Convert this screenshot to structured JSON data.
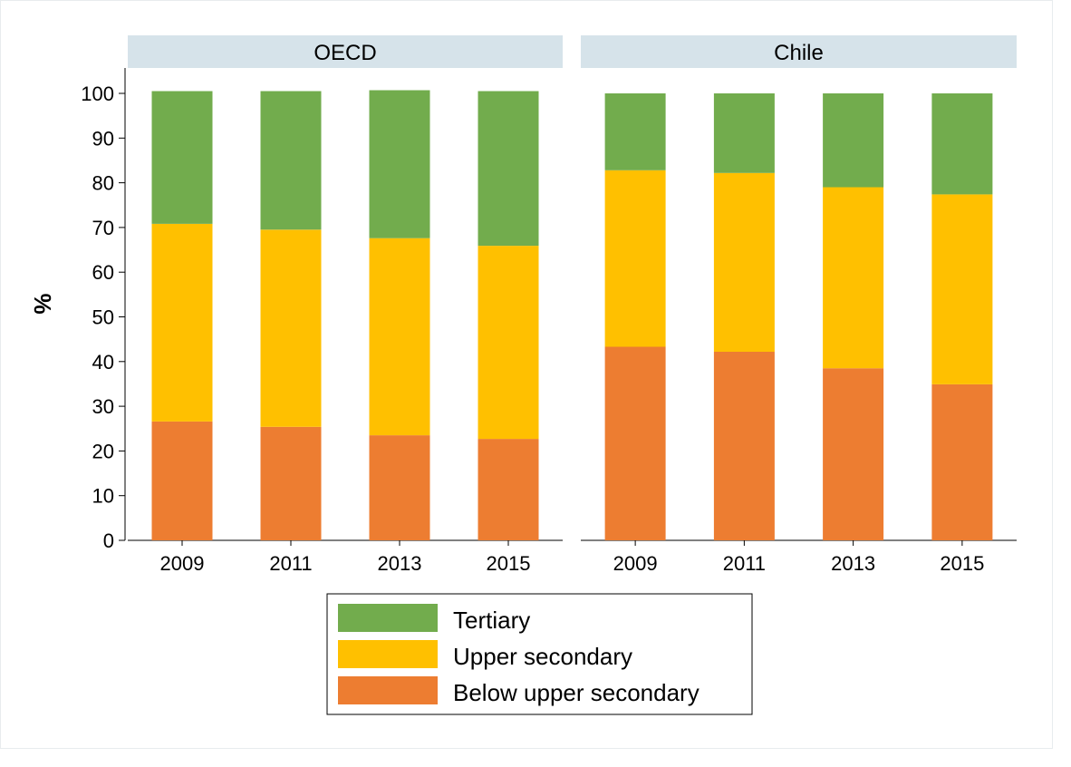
{
  "chart_data": {
    "type": "bar",
    "stacked": true,
    "ylabel": "%",
    "ylim": [
      0,
      100
    ],
    "yticks": [
      0,
      10,
      20,
      30,
      40,
      50,
      60,
      70,
      80,
      90,
      100
    ],
    "grid": false,
    "legend_position": "bottom-center",
    "colors": {
      "tertiary": "#72ac4d",
      "upper_secondary": "#ffc000",
      "below_upper_secondary": "#ed7d31",
      "strip": "#d6e3ea"
    },
    "legend": [
      {
        "key": "tertiary",
        "label": "Tertiary"
      },
      {
        "key": "upper_secondary",
        "label": "Upper secondary"
      },
      {
        "key": "below_upper_secondary",
        "label": "Below upper secondary"
      }
    ],
    "panels": [
      {
        "title": "OECD",
        "categories": [
          "2009",
          "2011",
          "2013",
          "2015"
        ],
        "series": [
          {
            "name": "Below upper secondary",
            "key": "below_upper_secondary",
            "values": [
              26.6,
              25.4,
              23.5,
              22.7
            ]
          },
          {
            "name": "Upper secondary",
            "key": "upper_secondary",
            "values": [
              44.2,
              44.1,
              44.1,
              43.2
            ]
          },
          {
            "name": "Tertiary",
            "key": "tertiary",
            "values": [
              29.7,
              31.0,
              33.1,
              34.6
            ]
          }
        ]
      },
      {
        "title": "Chile",
        "categories": [
          "2009",
          "2011",
          "2013",
          "2015"
        ],
        "series": [
          {
            "name": "Below upper secondary",
            "key": "below_upper_secondary",
            "values": [
              43.3,
              42.2,
              38.5,
              34.9
            ]
          },
          {
            "name": "Upper secondary",
            "key": "upper_secondary",
            "values": [
              39.5,
              40.0,
              40.5,
              42.5
            ]
          },
          {
            "name": "Tertiary",
            "key": "tertiary",
            "values": [
              17.2,
              17.8,
              21.0,
              22.6
            ]
          }
        ]
      }
    ]
  }
}
